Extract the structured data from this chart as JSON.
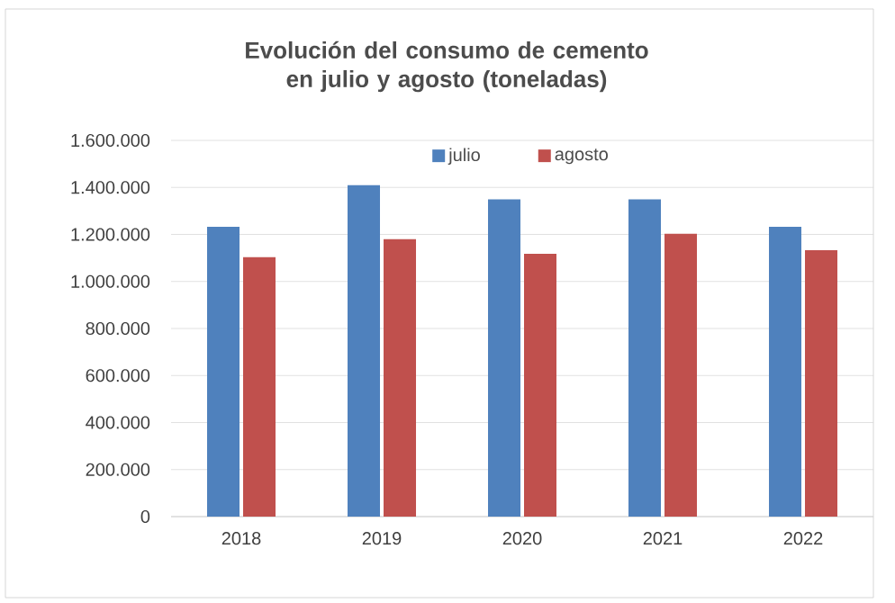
{
  "chart_data": {
    "type": "bar",
    "title": "Evolución del consumo de cemento en julio y agosto (toneladas)",
    "categories": [
      "2018",
      "2019",
      "2020",
      "2021",
      "2022"
    ],
    "series": [
      {
        "name": "julio",
        "color": "#4f81bd",
        "values": [
          1233000,
          1410000,
          1349000,
          1349000,
          1233000
        ]
      },
      {
        "name": "agosto",
        "color": "#c0504d",
        "values": [
          1103000,
          1180000,
          1118000,
          1203000,
          1133000
        ]
      }
    ],
    "ylim": [
      0,
      1600000
    ],
    "yticks": [
      0,
      {
        "value": 200000,
        "label": "200.000"
      },
      {
        "value": 400000,
        "label": "400.000"
      },
      {
        "value": 600000,
        "label": "600.000"
      },
      {
        "value": 800000,
        "label": "800.000"
      },
      {
        "value": 1000000,
        "label": "1.000.000"
      },
      {
        "value": 1200000,
        "label": "1.200.000"
      },
      {
        "value": 1400000,
        "label": "1.400.000"
      },
      {
        "value": 1600000,
        "label": "1.600.000"
      }
    ],
    "grid": "y",
    "legend": "top"
  }
}
